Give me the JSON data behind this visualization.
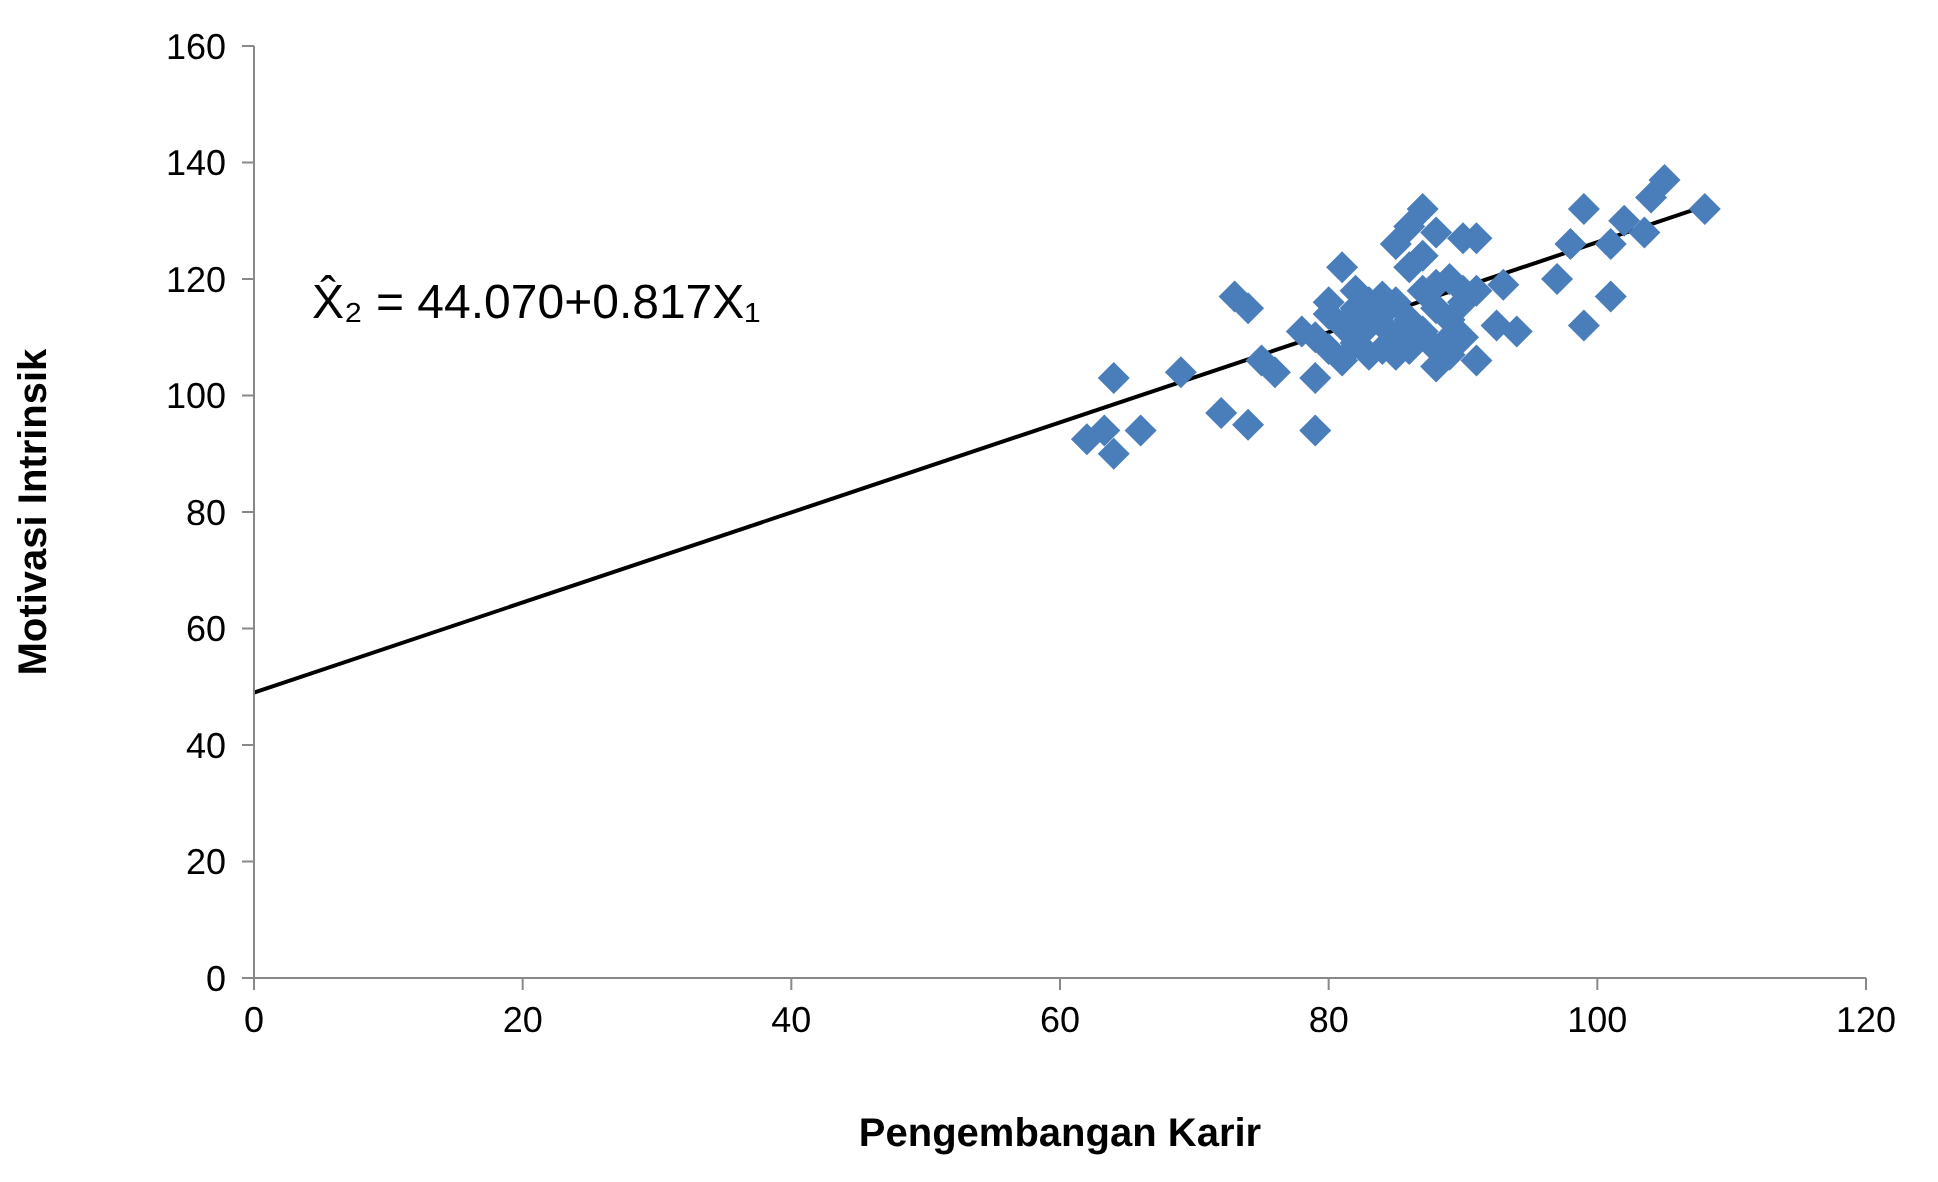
{
  "chart_data": {
    "type": "scatter",
    "xlabel": "Pengembangan Karir",
    "ylabel": "Motivasi Intrinsik",
    "annotations": [
      "X̂₂ = 44.070+0.817X₁"
    ],
    "xlim": [
      0,
      120
    ],
    "xticks": [
      0,
      20,
      40,
      60,
      80,
      100,
      120
    ],
    "ylim": [
      0,
      160
    ],
    "yticks": [
      0,
      20,
      40,
      60,
      80,
      100,
      120,
      140,
      160
    ],
    "marker": "diamond",
    "series": [
      {
        "color": "#4a7ebb",
        "x": [
          62,
          63.3,
          64,
          64,
          66,
          69,
          72,
          73,
          74,
          74,
          75,
          76,
          79,
          79,
          78,
          80,
          81,
          82,
          83,
          84.5,
          85,
          86,
          87,
          88,
          88,
          90,
          90,
          91,
          91,
          90,
          92.5,
          93,
          94,
          97,
          98,
          99,
          99,
          101,
          101,
          102,
          103.5,
          104,
          105,
          108,
          80,
          81,
          82,
          83,
          84,
          84,
          85,
          85,
          86,
          86,
          87,
          87,
          88,
          88,
          89,
          89,
          89,
          86,
          87,
          90,
          83,
          82,
          84,
          88,
          91,
          89,
          85,
          79,
          80,
          81
        ],
        "values": [
          92.5,
          94,
          103,
          90,
          94,
          104,
          97,
          117,
          115,
          95,
          106,
          104,
          94,
          103,
          111,
          114,
          122,
          109,
          116,
          111,
          126,
          129,
          132,
          128,
          105,
          116,
          127,
          127,
          106,
          110,
          112,
          119,
          111,
          120,
          126,
          132,
          112,
          117,
          126,
          130,
          128,
          134,
          137,
          132,
          108,
          112,
          115,
          112,
          114,
          108,
          116,
          110,
          113,
          108,
          118,
          111,
          115,
          108,
          120,
          113,
          110,
          122,
          124,
          118,
          107,
          118,
          117,
          119,
          118,
          107,
          107,
          110,
          116,
          106
        ]
      },
      {
        "type": "line",
        "marker": "none",
        "color": "#000000",
        "x": [
          0,
          108
        ],
        "values": [
          49,
          132.5
        ]
      }
    ]
  }
}
